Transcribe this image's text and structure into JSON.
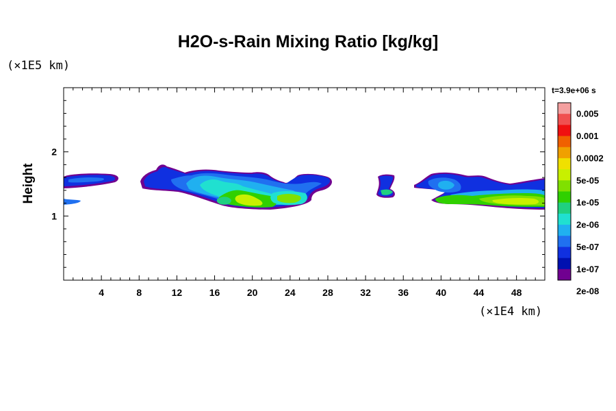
{
  "chart_data": {
    "type": "heatmap",
    "title": "H2O-s-Rain Mixing Ratio [kg/kg]",
    "ylabel": "Height",
    "y_unit_label": "(×1E5 km)",
    "x_unit_label": "(×1E4 km)",
    "time_label": "t=3.9e+06 s",
    "xlim": [
      0,
      51
    ],
    "ylim": [
      0,
      3
    ],
    "x_ticks": [
      "4",
      "8",
      "12",
      "16",
      "20",
      "24",
      "28",
      "32",
      "36",
      "40",
      "44",
      "48"
    ],
    "x_tick_values": [
      4,
      8,
      12,
      16,
      20,
      24,
      28,
      32,
      36,
      40,
      44,
      48
    ],
    "y_ticks": [
      "1",
      "2"
    ],
    "y_tick_values": [
      1,
      2
    ],
    "colorbar": {
      "labels": [
        "0.005",
        "0.001",
        "0.0002",
        "5e-05",
        "1e-05",
        "2e-06",
        "5e-07",
        "1e-07",
        "2e-08"
      ],
      "colors": [
        "#f4a0a0",
        "#f05050",
        "#f01010",
        "#f06000",
        "#f0a000",
        "#f0e000",
        "#c8f000",
        "#80e000",
        "#30d000",
        "#20d080",
        "#20e0d0",
        "#20b0f0",
        "#2070f0",
        "#1030e0",
        "#0010b0",
        "#700090"
      ]
    },
    "regions": [
      {
        "name": "band-left",
        "x": [
          0,
          5.8
        ],
        "y": [
          1.4,
          1.66
        ],
        "level": 2
      },
      {
        "name": "band-left-low",
        "x": [
          0,
          1.8
        ],
        "y": [
          1.15,
          1.25
        ],
        "level": 3
      },
      {
        "name": "cloud-main",
        "x": [
          8,
          28
        ],
        "y": [
          1.1,
          1.8
        ],
        "level": 2
      },
      {
        "name": "cloud-main-core",
        "x": [
          14,
          27
        ],
        "y": [
          1.15,
          1.7
        ],
        "level": 6
      },
      {
        "name": "cloud-small",
        "x": [
          33,
          35
        ],
        "y": [
          1.35,
          1.65
        ],
        "level": 2
      },
      {
        "name": "cloud-right",
        "x": [
          37,
          51
        ],
        "y": [
          1.1,
          1.7
        ],
        "level": 2
      },
      {
        "name": "cloud-right-core",
        "x": [
          39,
          51
        ],
        "y": [
          1.12,
          1.4
        ],
        "level": 8
      }
    ]
  }
}
